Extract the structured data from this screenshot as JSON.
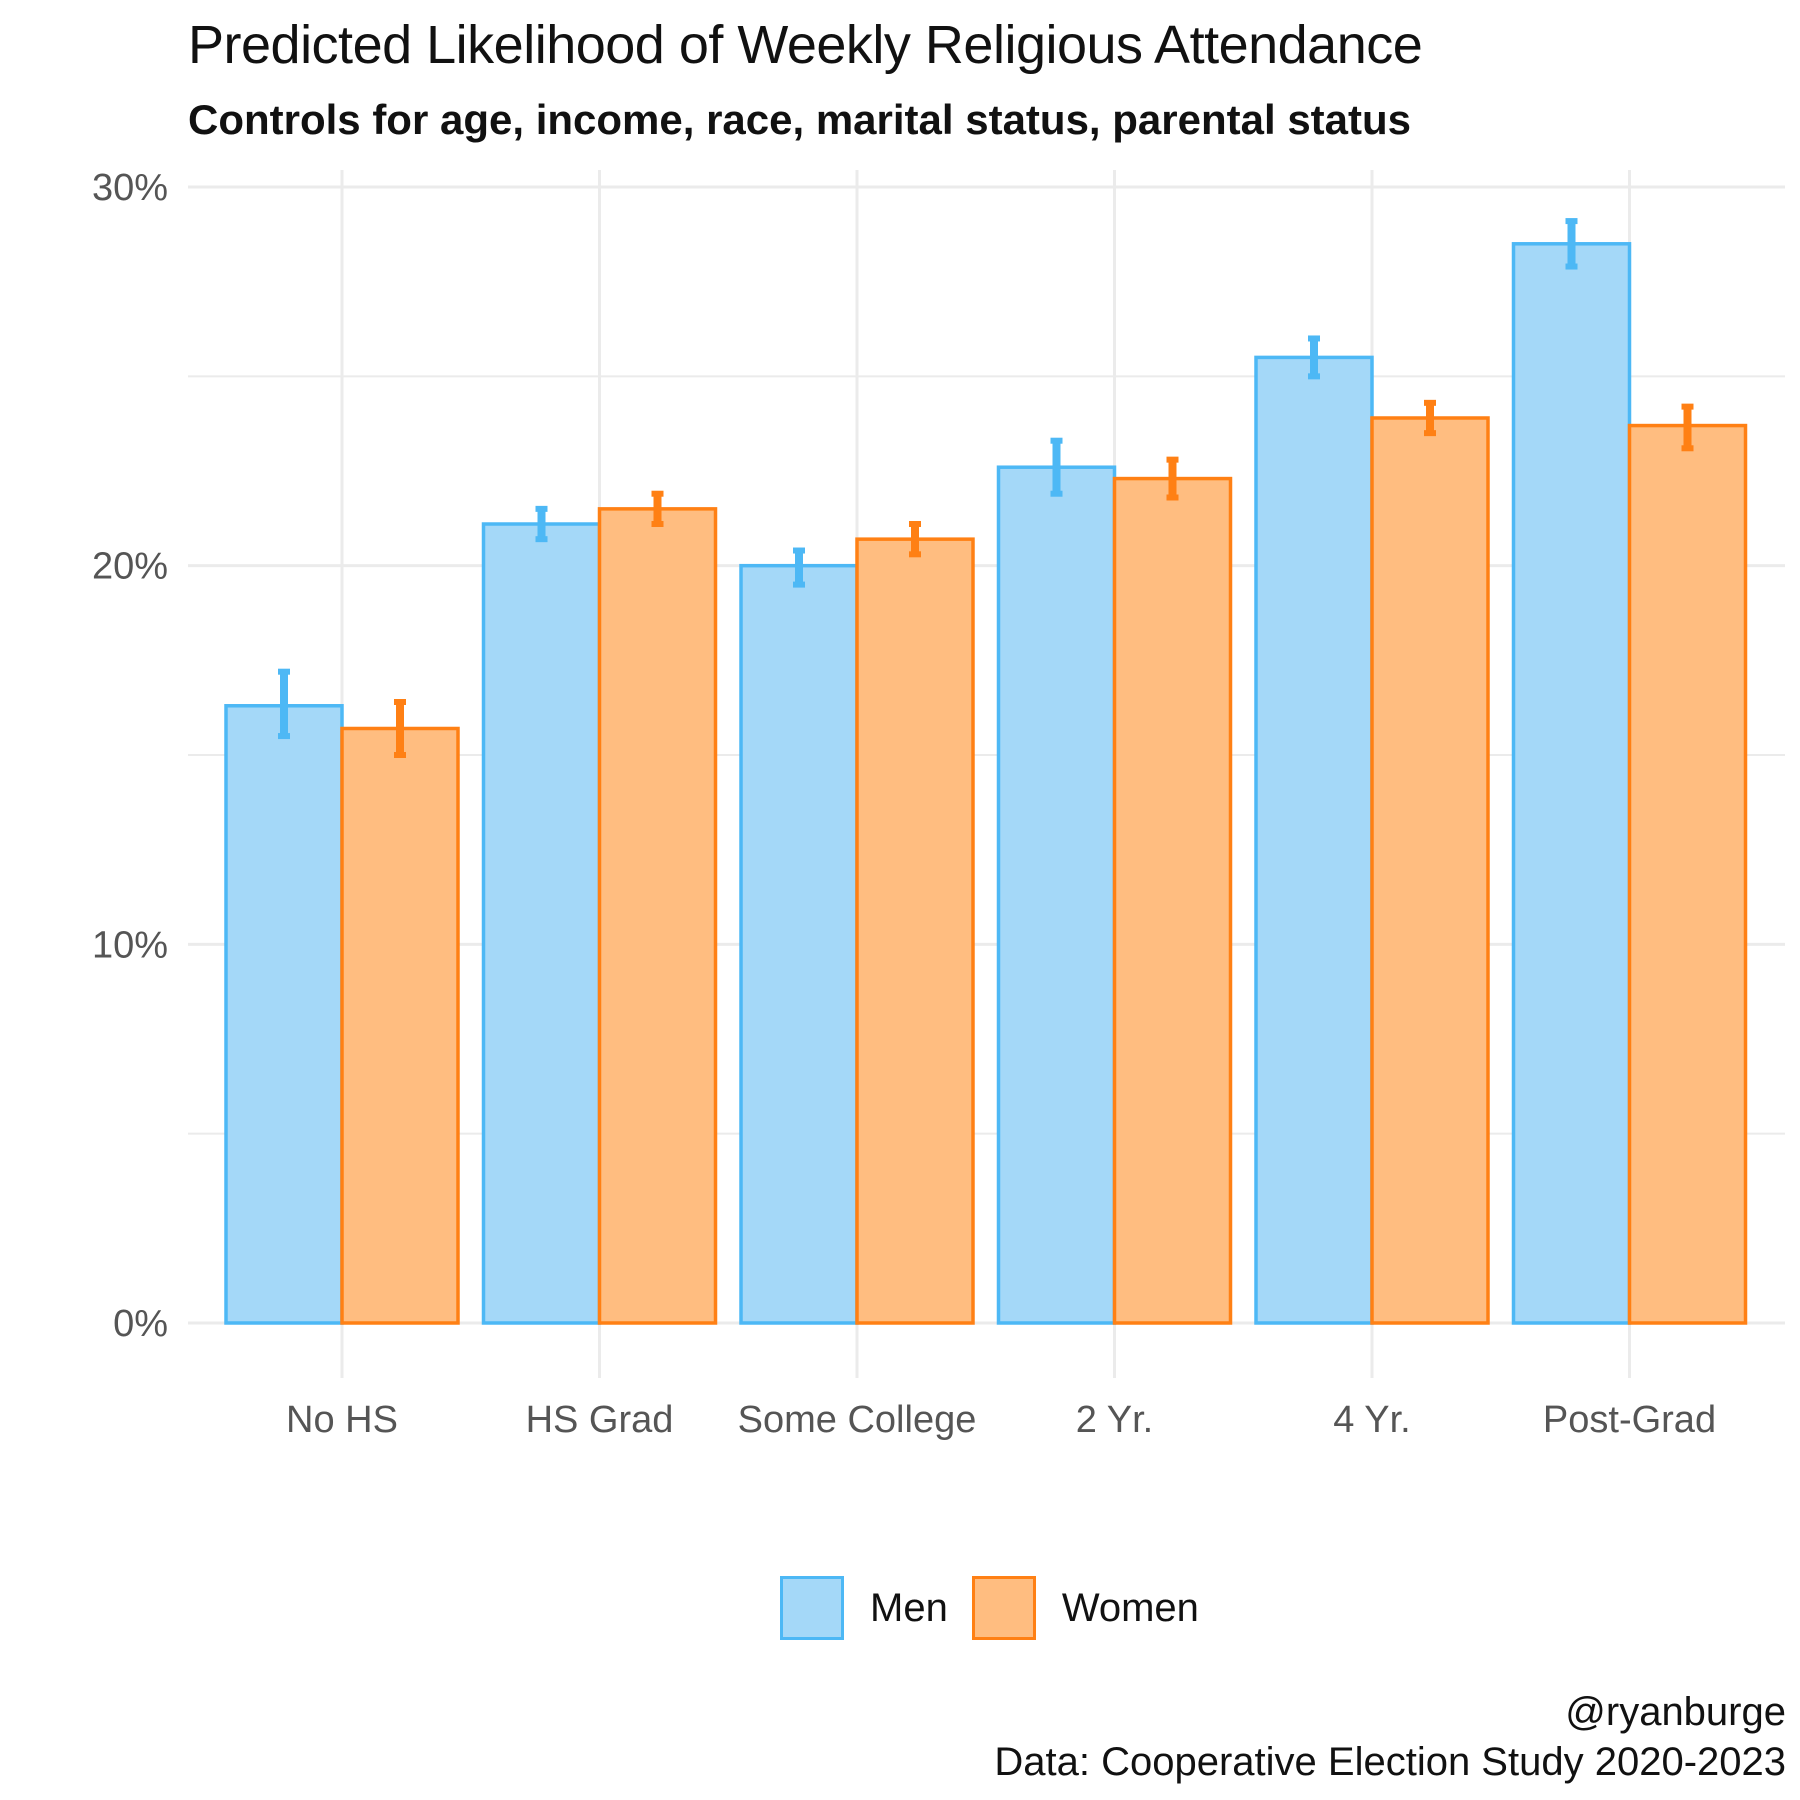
{
  "chart_data": {
    "type": "bar",
    "title": "Predicted Likelihood of Weekly Religious Attendance",
    "subtitle": "Controls for age, income, race, marital status, parental status",
    "xlabel": "",
    "ylabel": "",
    "categories": [
      "No HS",
      "HS Grad",
      "Some College",
      "2 Yr.",
      "4 Yr.",
      "Post-Grad"
    ],
    "ylim": [
      0,
      30
    ],
    "yticks": [
      0,
      10,
      20,
      30
    ],
    "ytick_labels": [
      "0%",
      "10%",
      "20%",
      "30%"
    ],
    "grid": true,
    "legend_position": "bottom",
    "series": [
      {
        "name": "Men",
        "color": "#4db8f5",
        "fill": "#a4d8f8",
        "values": [
          16.3,
          21.1,
          20.0,
          22.6,
          25.5,
          28.5
        ],
        "err_low": [
          15.5,
          20.7,
          19.5,
          21.9,
          25.0,
          27.9
        ],
        "err_high": [
          17.2,
          21.5,
          20.4,
          23.3,
          26.0,
          29.1
        ]
      },
      {
        "name": "Women",
        "color": "#ff8014",
        "fill": "#ffbd80",
        "values": [
          15.7,
          21.5,
          20.7,
          22.3,
          23.9,
          23.7
        ],
        "err_low": [
          15.0,
          21.1,
          20.3,
          21.8,
          23.5,
          23.1
        ],
        "err_high": [
          16.4,
          21.9,
          21.1,
          22.8,
          24.3,
          24.2
        ]
      }
    ]
  },
  "caption": {
    "handle": "@ryanburge",
    "source": "Data: Cooperative Election Study 2020-2023"
  }
}
